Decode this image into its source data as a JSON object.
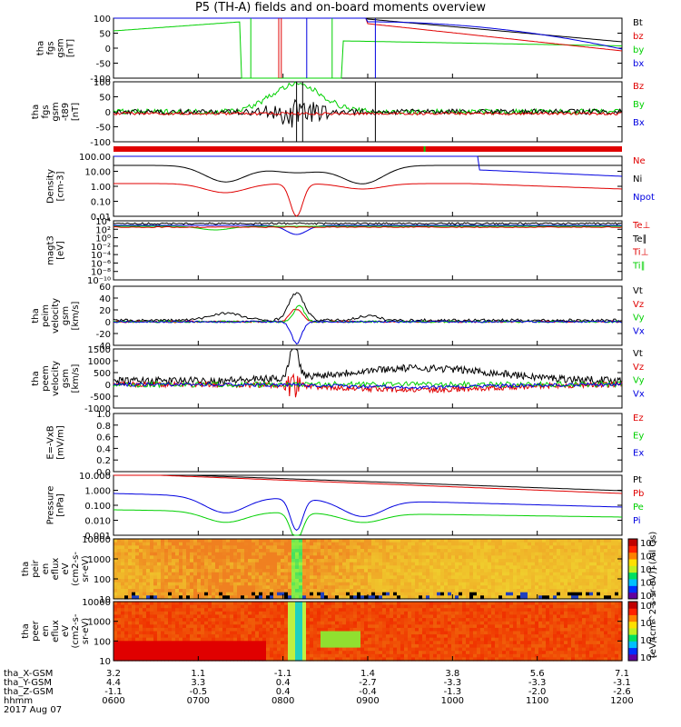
{
  "title": "P5 (TH-A) fields and on-board moments overview",
  "colors": {
    "black": "#000000",
    "red": "#e00000",
    "green": "#00d000",
    "blue": "#0000e0",
    "lime": "#20e020"
  },
  "chart_data": [
    {
      "id": "p0",
      "type": "line",
      "ylabel": [
        "tha",
        "fgs",
        "gsm",
        "[nT]"
      ],
      "yticks": [
        "100",
        "50",
        "0",
        "-50",
        "-100"
      ],
      "ylim": [
        -100,
        100
      ],
      "legend": [
        {
          "label": "Bt",
          "color": "black"
        },
        {
          "label": "bz",
          "color": "red"
        },
        {
          "label": "by",
          "color": "green"
        },
        {
          "label": "bx",
          "color": "blue"
        }
      ]
    },
    {
      "id": "p1",
      "type": "line",
      "ylabel": [
        "tha",
        "fgs",
        "gsm",
        "-t89",
        "[nT]"
      ],
      "yticks": [
        "100",
        "50",
        "0",
        "-50",
        "-100"
      ],
      "ylim": [
        -100,
        100
      ],
      "legend": [
        {
          "label": "Bz",
          "color": "red"
        },
        {
          "label": "By",
          "color": "green"
        },
        {
          "label": "Bx",
          "color": "blue"
        }
      ]
    },
    {
      "id": "p2",
      "type": "line",
      "ylabel": [
        "Density",
        "[cm-3]"
      ],
      "yticks": [
        "100.00",
        "10.00",
        "1.00",
        "0.10",
        "0.01"
      ],
      "ylim": [
        0.005,
        300
      ],
      "scale": "log",
      "legend": [
        {
          "label": "Ne",
          "color": "red"
        },
        {
          "label": "Ni",
          "color": "black"
        },
        {
          "label": "Npot",
          "color": "blue"
        }
      ]
    },
    {
      "id": "p3",
      "type": "line",
      "ylabel": [
        "magt3",
        "[eV]"
      ],
      "yticks": [
        "10⁴",
        "10²",
        "10⁰",
        "10⁻²",
        "10⁻⁴",
        "10⁻⁶",
        "10⁻⁸",
        "10⁻¹⁰"
      ],
      "scale": "log",
      "legend": [
        {
          "label": "Te⊥",
          "color": "red"
        },
        {
          "label": "Te∥",
          "color": "black"
        },
        {
          "label": "Ti⊥",
          "color": "red"
        },
        {
          "label": "Ti∥",
          "color": "green"
        }
      ]
    },
    {
      "id": "p4",
      "type": "line",
      "ylabel": [
        "tha",
        "peim",
        "velocity",
        "gsm",
        "[km/s]"
      ],
      "yticks": [
        "60",
        "40",
        "20",
        "0",
        "-20",
        "-40"
      ],
      "ylim": [
        -40,
        60
      ],
      "legend": [
        {
          "label": "Vt",
          "color": "black"
        },
        {
          "label": "Vz",
          "color": "red"
        },
        {
          "label": "Vy",
          "color": "green"
        },
        {
          "label": "Vx",
          "color": "blue"
        }
      ]
    },
    {
      "id": "p5",
      "type": "line",
      "ylabel": [
        "tha",
        "peem",
        "velocity",
        "gsm",
        "[km/s]"
      ],
      "yticks": [
        "1500",
        "1000",
        "500",
        "0",
        "-500",
        "-1000"
      ],
      "ylim": [
        -1000,
        1500
      ],
      "legend": [
        {
          "label": "Vt",
          "color": "black"
        },
        {
          "label": "Vz",
          "color": "red"
        },
        {
          "label": "Vy",
          "color": "green"
        },
        {
          "label": "Vx",
          "color": "blue"
        }
      ]
    },
    {
      "id": "p6",
      "type": "line",
      "ylabel": [
        "E=-VxB",
        "[mV/m]"
      ],
      "yticks": [
        "1.0",
        "0.8",
        "0.6",
        "0.4",
        "0.2",
        "0.0"
      ],
      "ylim": [
        0,
        1
      ],
      "legend": [
        {
          "label": "Ez",
          "color": "red"
        },
        {
          "label": "Ey",
          "color": "green"
        },
        {
          "label": "Ex",
          "color": "blue"
        }
      ]
    },
    {
      "id": "p7",
      "type": "line",
      "ylabel": [
        "Pressure",
        "[nPa]"
      ],
      "yticks": [
        "10.000",
        "1.000",
        "0.100",
        "0.010",
        "0.001"
      ],
      "ylim": [
        0.0003,
        30
      ],
      "scale": "log",
      "legend": [
        {
          "label": "Pt",
          "color": "black"
        },
        {
          "label": "Pb",
          "color": "red"
        },
        {
          "label": "Pe",
          "color": "green"
        },
        {
          "label": "Pi",
          "color": "blue"
        }
      ]
    },
    {
      "id": "p8",
      "type": "heatmap",
      "ylabel": [
        "tha",
        "peir",
        "en",
        "eflux",
        "eV",
        "(cm2-s-",
        "sr-eV)"
      ],
      "yticks": [
        "10000",
        "1000",
        "100",
        "10"
      ],
      "scale": "log",
      "colorbar_ticks": [
        "10⁸",
        "10⁶",
        "10⁴",
        "10²",
        "10⁰"
      ]
    },
    {
      "id": "p9",
      "type": "heatmap",
      "ylabel": [
        "tha",
        "peer",
        "en",
        "eflux",
        "eV",
        "(cm2-s-",
        "sr-eV)"
      ],
      "yticks": [
        "10000",
        "1000",
        "100",
        "10"
      ],
      "scale": "log",
      "colorbar_ticks": [
        "10⁸",
        "10⁶",
        "10⁴",
        "10²"
      ]
    }
  ],
  "colorbar_label": "[eV/(cm^2-s-sr-eV)] (All Qs)",
  "x_axis": {
    "labels": [
      "tha_X-GSM",
      "tha_Y-GSM",
      "tha_Z-GSM",
      "hhmm",
      "2017 Aug 07"
    ],
    "ticks": [
      {
        "x": "3.2",
        "y": "4.4",
        "z": "-1.1",
        "t": "0600"
      },
      {
        "x": "1.1",
        "y": "3.3",
        "z": "-0.5",
        "t": "0700"
      },
      {
        "x": "-1.1",
        "y": "0.4",
        "z": "0.4",
        "t": "0800"
      },
      {
        "x": "1.4",
        "y": "-2.7",
        "z": "-0.4",
        "t": "0900"
      },
      {
        "x": "3.8",
        "y": "-3.3",
        "z": "-1.3",
        "t": "1000"
      },
      {
        "x": "5.6",
        "y": "-3.3",
        "z": "-2.0",
        "t": "1100"
      },
      {
        "x": "7.1",
        "y": "-3.1",
        "z": "-2.6",
        "t": "1200"
      }
    ]
  }
}
